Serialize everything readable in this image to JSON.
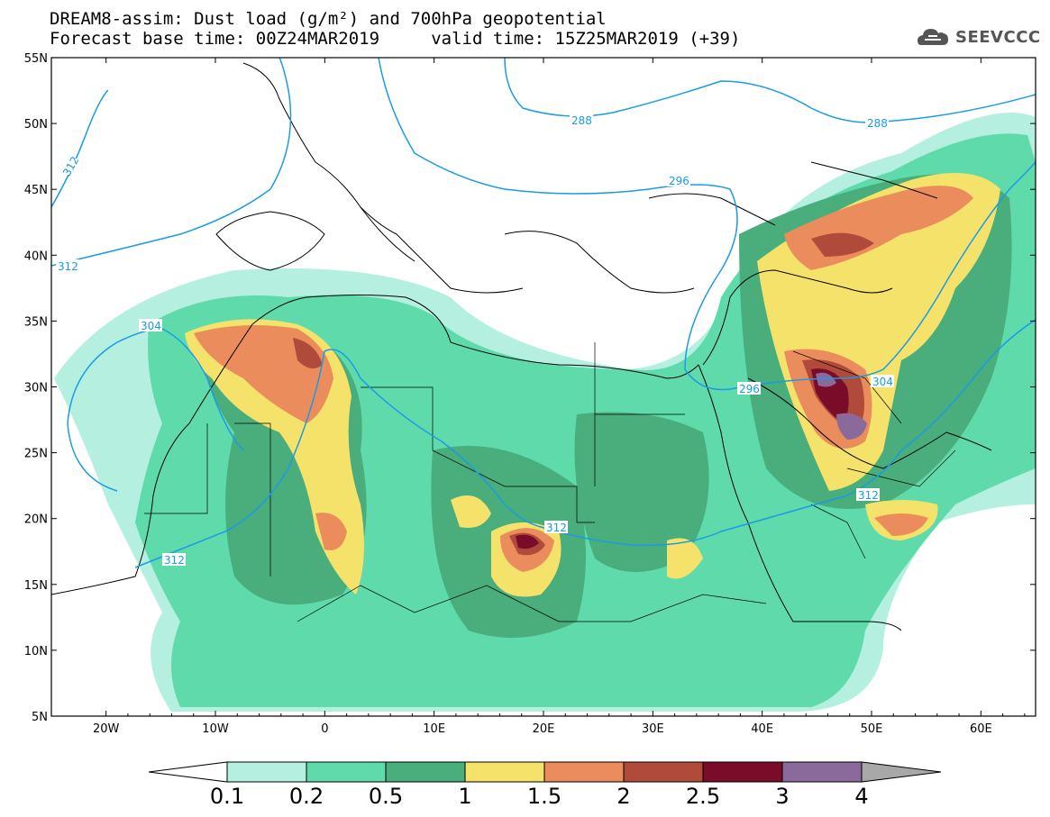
{
  "title": {
    "line1": "DREAM8-assim: Dust load (g/m²) and 700hPa geopotential",
    "line2": "Forecast base time: 00Z24MAR2019     valid time: 15Z25MAR2019 (+39)"
  },
  "logo": {
    "text": "SEEVCCC",
    "icon": "cloud-icon"
  },
  "map": {
    "lon_range": [
      -25,
      65
    ],
    "lat_range": [
      5,
      55
    ],
    "lon_ticks": [
      "20W",
      "10W",
      "0",
      "10E",
      "20E",
      "30E",
      "40E",
      "50E",
      "60E"
    ],
    "lat_ticks": [
      "5N",
      "10N",
      "15N",
      "20N",
      "25N",
      "30N",
      "35N",
      "40N",
      "45N",
      "50N",
      "55N"
    ],
    "contour_labels": [
      "312",
      "312",
      "304",
      "312",
      "288",
      "288",
      "296",
      "296",
      "304",
      "312",
      "312"
    ],
    "contour_color": "#1a9be6"
  },
  "colorbar": {
    "levels": [
      "0.1",
      "0.2",
      "0.5",
      "1",
      "1.5",
      "2",
      "2.5",
      "3",
      "4"
    ],
    "colors": [
      "#b4efe0",
      "#5fdbab",
      "#4aad7c",
      "#f5e26a",
      "#ea8c5c",
      "#b04a3a",
      "#7a0c2a",
      "#8a6a9a",
      "#a8a8a8"
    ],
    "extend_low_color": "#ffffff"
  }
}
